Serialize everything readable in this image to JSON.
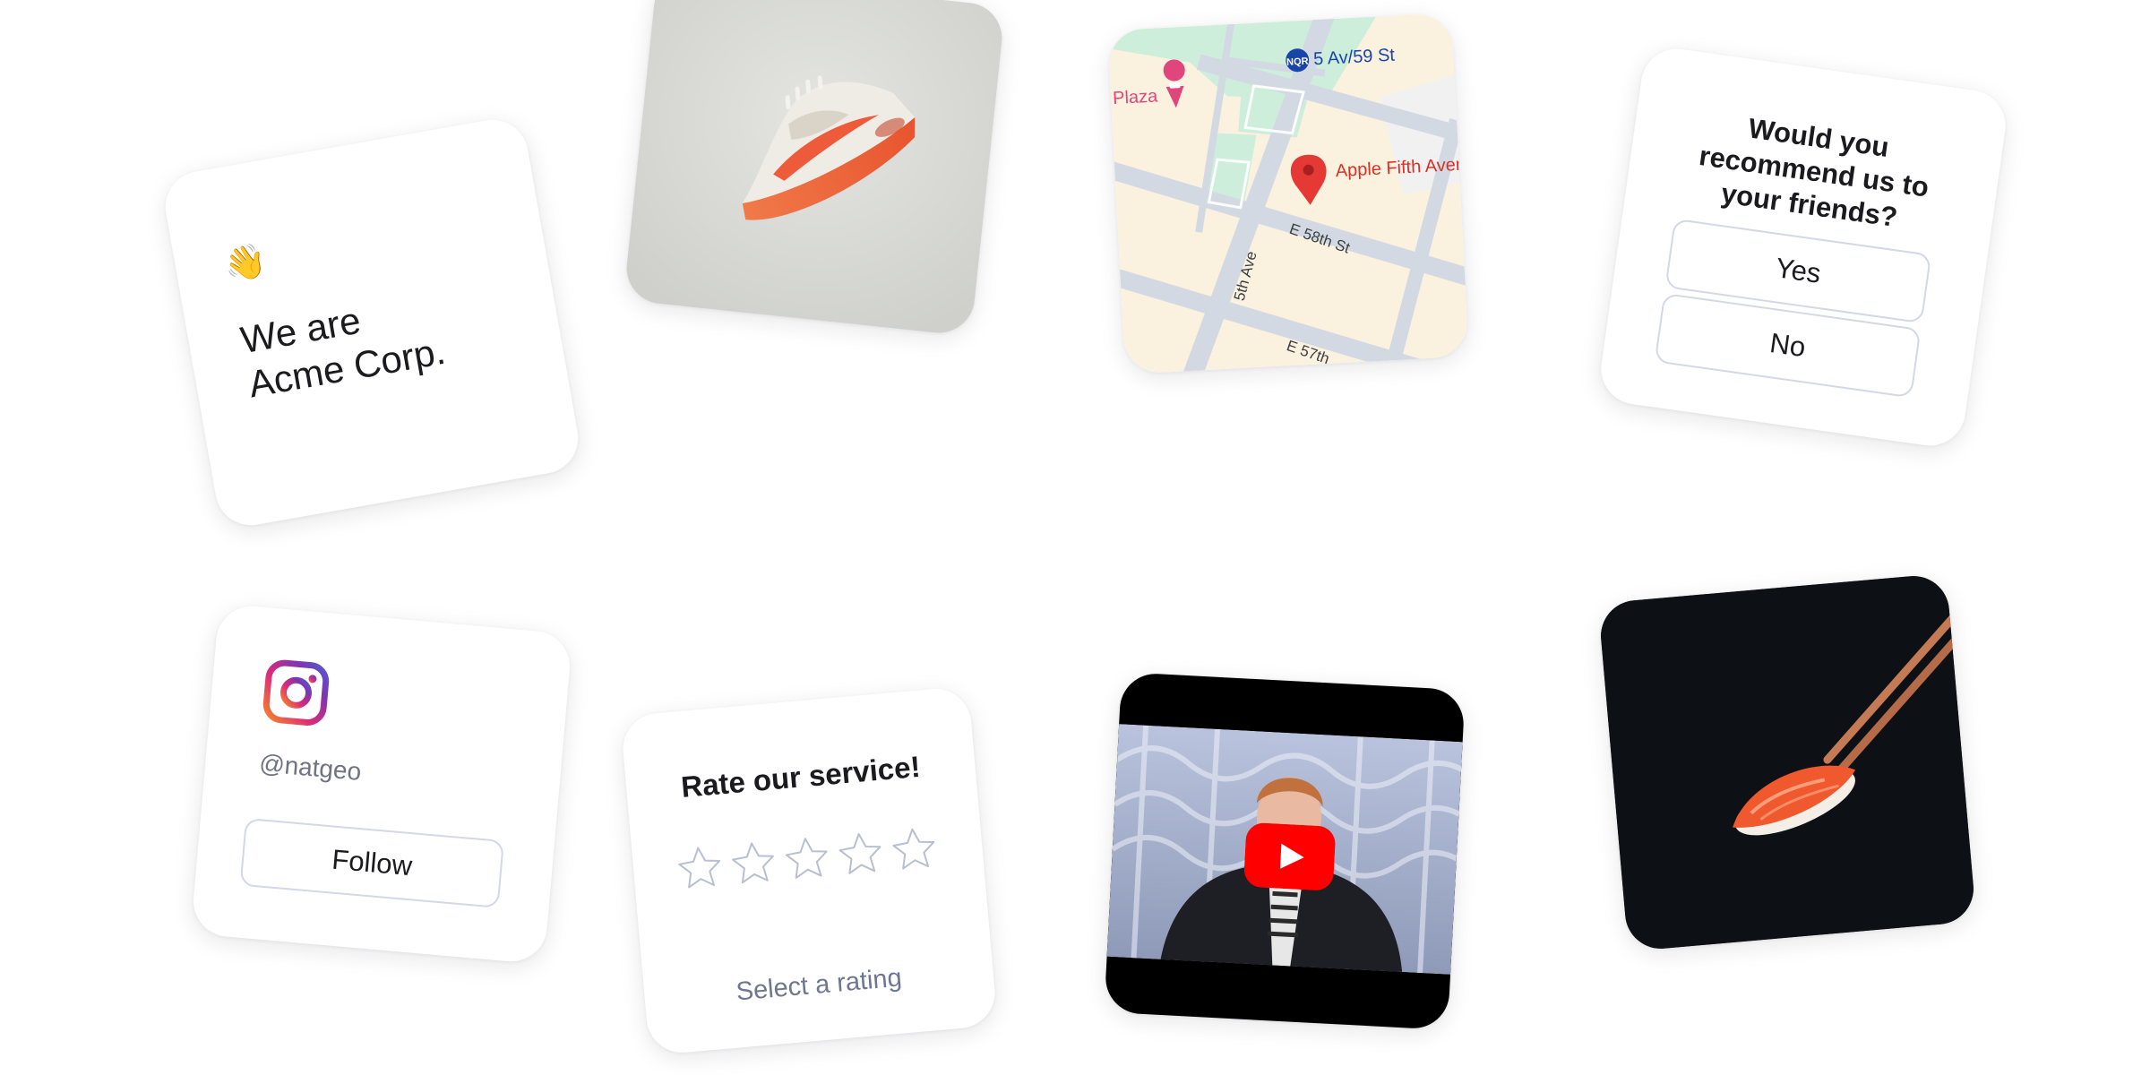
{
  "intro": {
    "emoji": "👋",
    "line1": "We are",
    "line2": "Acme Corp."
  },
  "product": {
    "icon": "sneaker-image"
  },
  "map": {
    "places": {
      "subway": "5 Av/59 St",
      "plaza": "Plaza",
      "store": "Apple Fifth Avenue"
    },
    "streets": {
      "fifth_ave": "5th Ave",
      "e58": "E 58th St",
      "e57": "E 57th"
    },
    "subway_badge": "NQR"
  },
  "survey": {
    "question": "Would you recommend us to your friends?",
    "options": [
      "Yes",
      "No"
    ]
  },
  "instagram": {
    "icon": "instagram-icon",
    "handle": "@natgeo",
    "button_label": "Follow"
  },
  "rating": {
    "title": "Rate our service!",
    "max": 5,
    "value": 0,
    "hint": "Select a rating"
  },
  "video": {
    "icon": "youtube-play-icon"
  },
  "sushi": {
    "icon": "sushi-image"
  },
  "colors": {
    "map_park": "#cdeedb",
    "map_block": "#fbf1df",
    "map_road": "#d3d9e2",
    "pin_red": "#e53935",
    "plaza_pink": "#e0457b",
    "subway_blue": "#1a45a8",
    "youtube_red": "#ff0000",
    "instagram_gradient": [
      "#f58529",
      "#dd2a7b",
      "#8134af",
      "#515bd4"
    ]
  }
}
